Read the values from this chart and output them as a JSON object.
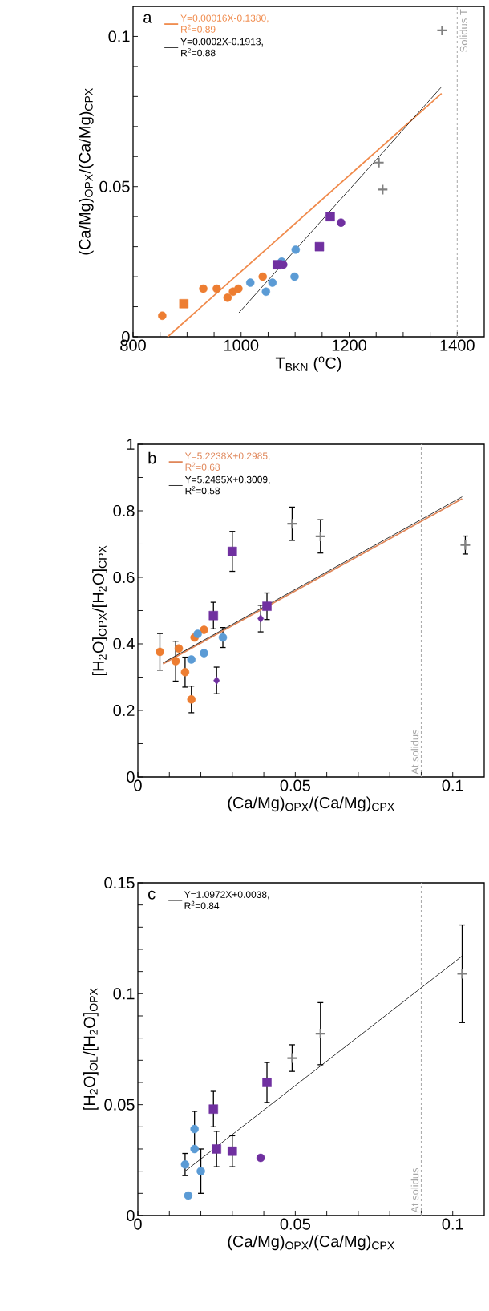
{
  "chart_data": [
    {
      "type": "scatter",
      "xlabel": "T$_{BKN}$ ($^{o}$C)",
      "ylabel": "(Ca/Mg)$_{OPX}$/(Ca/Mg)$_{CPX}$",
      "annotations": [
        "a"
      ],
      "legend": "top left",
      "xlim": [
        800,
        1450
      ],
      "ylim": [
        0,
        0.11
      ],
      "xticks": [
        800,
        {
          "value": 850,
          "label": null
        },
        {
          "value": 900,
          "label": null
        },
        {
          "value": 950,
          "label": null
        },
        1000,
        {
          "value": 1050,
          "label": null
        },
        {
          "value": 1100,
          "label": null
        },
        {
          "value": 1150,
          "label": null
        },
        1200,
        {
          "value": 1250,
          "label": null
        },
        {
          "value": 1300,
          "label": null
        },
        {
          "value": 1350,
          "label": null
        },
        1400
      ],
      "yticks": [
        0,
        {
          "value": 0.01,
          "label": null
        },
        {
          "value": 0.02,
          "label": null
        },
        {
          "value": 0.03,
          "label": null
        },
        {
          "value": 0.04,
          "label": null
        },
        0.05,
        {
          "value": 0.06,
          "label": null
        },
        {
          "value": 0.07,
          "label": null
        },
        {
          "value": 0.08,
          "label": null
        },
        {
          "value": 0.09,
          "label": null
        },
        0.1
      ],
      "ref_lines": [
        {
          "axis": "x",
          "value": 1400,
          "label": "Solidus T",
          "color": "#a6a6a6",
          "line_style": "dashed"
        }
      ],
      "series": [
        {
          "type": "scatter",
          "marker": "circle",
          "color": "#ed7d31",
          "x": [
            854,
            930,
            955,
            975,
            985,
            995,
            1040
          ],
          "values": [
            0.007,
            0.016,
            0.016,
            0.013,
            0.015,
            0.016,
            0.02
          ]
        },
        {
          "type": "scatter",
          "marker": "square",
          "color": "#ed7d31",
          "x": [
            894
          ],
          "values": [
            0.011
          ]
        },
        {
          "type": "scatter",
          "marker": "circle",
          "color": "#5b9bd5",
          "x": [
            1017,
            1046,
            1058,
            1075,
            1099,
            1101
          ],
          "values": [
            0.018,
            0.015,
            0.018,
            0.025,
            0.02,
            0.029
          ]
        },
        {
          "type": "scatter",
          "marker": "square",
          "color": "#7030a0",
          "x": [
            1067,
            1145,
            1165
          ],
          "values": [
            0.024,
            0.03,
            0.04
          ]
        },
        {
          "type": "scatter",
          "marker": "circle",
          "color": "#7030a0",
          "x": [
            1078,
            1185
          ],
          "values": [
            0.024,
            0.038
          ]
        },
        {
          "type": "scatter",
          "marker": "cross",
          "color": "#808080",
          "x": [
            1255,
            1262,
            1372
          ],
          "values": [
            0.058,
            0.049,
            0.102
          ]
        },
        {
          "type": "line",
          "name": "Y=0.00016X-0.1380, R$^{2}$=0.89",
          "color": "#f08a4b",
          "x": [
            864,
            1371
          ],
          "values": [
            0,
            0.081
          ]
        },
        {
          "type": "line",
          "name": "Y=0.0002X-0.1913, R$^{2}$=0.88",
          "color": "#000000",
          "x": [
            996,
            1370
          ],
          "values": [
            0.008,
            0.083
          ]
        }
      ]
    },
    {
      "type": "scatter",
      "xlabel": "(Ca/Mg)$_{OPX}$/(Ca/Mg)$_{CPX}$",
      "ylabel": "[H$_{2}$O]$_{OPX}$/[H$_{2}$O]$_{CPX}$",
      "annotations": [
        "b"
      ],
      "legend": "top left",
      "xlim": [
        0,
        0.11
      ],
      "ylim": [
        0,
        1
      ],
      "xticks": [
        0,
        {
          "value": 0.01,
          "label": null
        },
        {
          "value": 0.02,
          "label": null
        },
        {
          "value": 0.03,
          "label": null
        },
        {
          "value": 0.04,
          "label": null
        },
        0.05,
        {
          "value": 0.06,
          "label": null
        },
        {
          "value": 0.07,
          "label": null
        },
        {
          "value": 0.08,
          "label": null
        },
        {
          "value": 0.09,
          "label": null
        },
        0.1
      ],
      "yticks": [
        0,
        {
          "value": 0.1,
          "label": null
        },
        0.2,
        {
          "value": 0.3,
          "label": null
        },
        0.4,
        {
          "value": 0.5,
          "label": null
        },
        0.6,
        {
          "value": 0.7,
          "label": null
        },
        0.8,
        {
          "value": 0.9,
          "label": null
        },
        1
      ],
      "ref_lines": [
        {
          "axis": "x",
          "value": 0.09,
          "label": "At solidus",
          "color": "#a6a6a6",
          "line_style": "dashed"
        }
      ],
      "series": [
        {
          "type": "scatter",
          "marker": "circle",
          "color": "#ed7d31",
          "x": [
            0.007,
            0.012,
            0.013,
            0.015,
            0.017,
            0.018,
            0.021
          ],
          "values": [
            0.376,
            0.348,
            0.386,
            0.315,
            0.233,
            0.419,
            0.442
          ],
          "errors": [
            0.055,
            0.06,
            null,
            0.045,
            0.04,
            null,
            null
          ]
        },
        {
          "type": "scatter",
          "marker": "circle",
          "color": "#5b9bd5",
          "x": [
            0.017,
            0.019,
            0.021,
            0.027
          ],
          "values": [
            0.353,
            0.43,
            0.372,
            0.419
          ],
          "errors": [
            null,
            null,
            null,
            0.03
          ]
        },
        {
          "type": "scatter",
          "marker": "square",
          "color": "#7030a0",
          "x": [
            0.024,
            0.03,
            0.041
          ],
          "values": [
            0.485,
            0.678,
            0.513
          ],
          "errors": [
            0.04,
            0.06,
            0.04
          ]
        },
        {
          "type": "scatter",
          "marker": "diamond",
          "color": "#7030a0",
          "x": [
            0.025,
            0.039
          ],
          "values": [
            0.29,
            0.476
          ],
          "errors": [
            0.04,
            0.04
          ]
        },
        {
          "type": "scatter",
          "marker": "cross",
          "color": "#808080",
          "x": [
            0.049,
            0.058,
            0.104
          ],
          "values": [
            0.761,
            0.723,
            0.697
          ],
          "errors": [
            0.05,
            0.05,
            0.027
          ]
        },
        {
          "type": "line",
          "name": "Y=5.2238X+0.2985, R$^{2}$=0.68",
          "color": "#e0875a",
          "x": [
            0.008,
            0.103
          ],
          "values": [
            0.34,
            0.836
          ]
        },
        {
          "type": "line",
          "name": "Y=5.2495X+0.3009, R$^{2}$=0.58",
          "color": "#000000",
          "x": [
            0.008,
            0.103
          ],
          "values": [
            0.343,
            0.842
          ]
        }
      ]
    },
    {
      "type": "scatter",
      "xlabel": "(Ca/Mg)$_{OPX}$/(Ca/Mg)$_{CPX}$",
      "ylabel": "[H$_{2}$O]$_{OL}$/[H$_{2}$O]$_{OPX}$",
      "annotations": [
        "c"
      ],
      "legend": "top left",
      "xlim": [
        0,
        0.11
      ],
      "ylim": [
        0,
        0.15
      ],
      "xticks": [
        0,
        {
          "value": 0.01,
          "label": null
        },
        {
          "value": 0.02,
          "label": null
        },
        {
          "value": 0.03,
          "label": null
        },
        {
          "value": 0.04,
          "label": null
        },
        0.05,
        {
          "value": 0.06,
          "label": null
        },
        {
          "value": 0.07,
          "label": null
        },
        {
          "value": 0.08,
          "label": null
        },
        {
          "value": 0.09,
          "label": null
        },
        0.1
      ],
      "yticks": [
        0,
        {
          "value": 0.01,
          "label": null
        },
        {
          "value": 0.02,
          "label": null
        },
        {
          "value": 0.03,
          "label": null
        },
        {
          "value": 0.04,
          "label": null
        },
        0.05,
        {
          "value": 0.06,
          "label": null
        },
        {
          "value": 0.07,
          "label": null
        },
        {
          "value": 0.08,
          "label": null
        },
        {
          "value": 0.09,
          "label": null
        },
        0.1,
        {
          "value": 0.11,
          "label": null
        },
        {
          "value": 0.12,
          "label": null
        },
        {
          "value": 0.13,
          "label": null
        },
        {
          "value": 0.14,
          "label": null
        },
        0.15
      ],
      "ref_lines": [
        {
          "axis": "x",
          "value": 0.09,
          "label": "At solidus",
          "color": "#a6a6a6",
          "line_style": "dashed"
        }
      ],
      "series": [
        {
          "type": "scatter",
          "marker": "circle",
          "color": "#5b9bd5",
          "x": [
            0.015,
            0.016,
            0.018,
            0.018,
            0.02
          ],
          "values": [
            0.023,
            0.009,
            0.03,
            0.039,
            0.02
          ],
          "errors": [
            0.005,
            null,
            null,
            0.008,
            0.01
          ]
        },
        {
          "type": "scatter",
          "marker": "square",
          "color": "#7030a0",
          "x": [
            0.024,
            0.025,
            0.03,
            0.041
          ],
          "values": [
            0.048,
            0.03,
            0.029,
            0.06
          ],
          "errors": [
            0.008,
            0.008,
            0.007,
            0.009
          ]
        },
        {
          "type": "scatter",
          "marker": "circle",
          "color": "#7030a0",
          "x": [
            0.039
          ],
          "values": [
            0.026
          ]
        },
        {
          "type": "scatter",
          "marker": "cross",
          "color": "#808080",
          "x": [
            0.049,
            0.058,
            0.103
          ],
          "values": [
            0.071,
            0.082,
            0.109
          ],
          "errors": [
            0.006,
            0.014,
            0.022
          ]
        },
        {
          "type": "line",
          "name": "Y=1.0972X+0.0038, R$^{2}$=0.84",
          "color": "#000000",
          "x": [
            0.015,
            0.103
          ],
          "values": [
            0.02,
            0.117
          ]
        }
      ]
    }
  ]
}
